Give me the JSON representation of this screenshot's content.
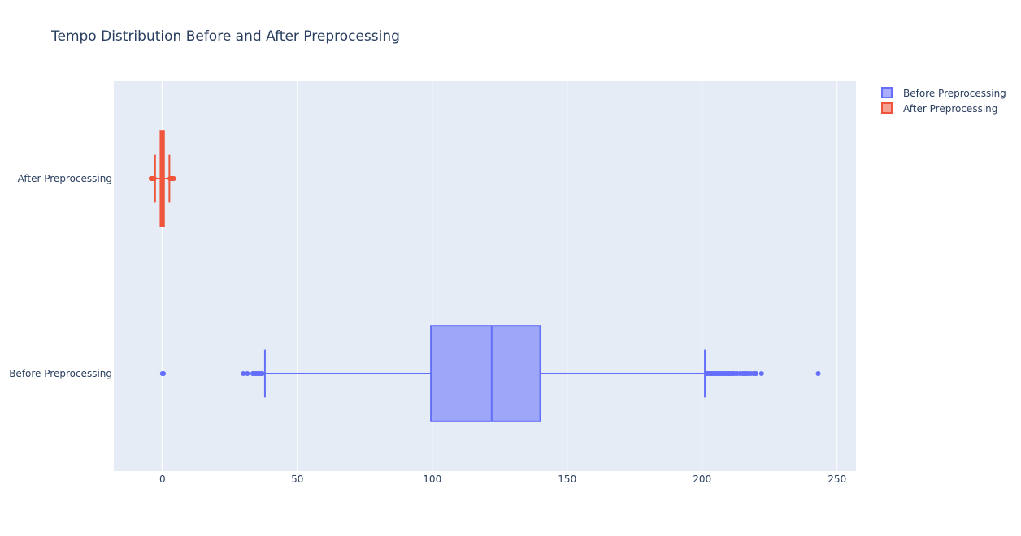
{
  "chart_data": {
    "type": "box",
    "orientation": "horizontal",
    "title": "Tempo Distribution Before and After Preprocessing",
    "xlabel": "",
    "ylabel": "",
    "xlim": [
      -18,
      257
    ],
    "x_ticks": [
      0,
      50,
      100,
      150,
      200,
      250
    ],
    "x_tick_labels": [
      "0",
      "50",
      "100",
      "150",
      "200",
      "250"
    ],
    "grid": true,
    "legend_position": "top-right",
    "categories": [
      "After Preprocessing",
      "Before Preprocessing"
    ],
    "series": [
      {
        "name": "Before Preprocessing",
        "category": "Before Preprocessing",
        "color": "#636efa",
        "fill_color": "rgba(99,110,250,0.55)",
        "min_whisker": 38,
        "q1": 99.5,
        "median": 122,
        "q3": 140,
        "max_whisker": 201,
        "outliers": [
          0,
          0.2,
          0.4,
          30,
          31.5,
          33.5,
          34,
          34.5,
          35,
          35.5,
          36,
          36.5,
          37,
          201.5,
          202,
          202.5,
          203,
          203.5,
          204,
          204.5,
          205,
          205.5,
          206,
          206.5,
          207,
          207.5,
          208,
          208.5,
          209,
          209.5,
          210,
          210.5,
          211,
          211.5,
          212,
          213,
          214,
          215,
          215.5,
          216,
          216.5,
          217,
          218,
          219,
          219.5,
          220,
          222,
          243
        ]
      },
      {
        "name": "After Preprocessing",
        "category": "After Preprocessing",
        "color": "#ef553b",
        "fill_color": "rgba(239,85,59,0.55)",
        "min_whisker": -2.7,
        "q1": -0.7,
        "median": -0.1,
        "q3": 0.6,
        "max_whisker": 2.6,
        "outliers": [
          -4.2,
          -4.0,
          -3.8,
          -3.6,
          -3.4,
          -3.2,
          -3.0,
          2.8,
          3.0,
          3.2,
          3.4,
          3.6,
          3.8,
          4.0,
          4.2
        ]
      }
    ]
  }
}
